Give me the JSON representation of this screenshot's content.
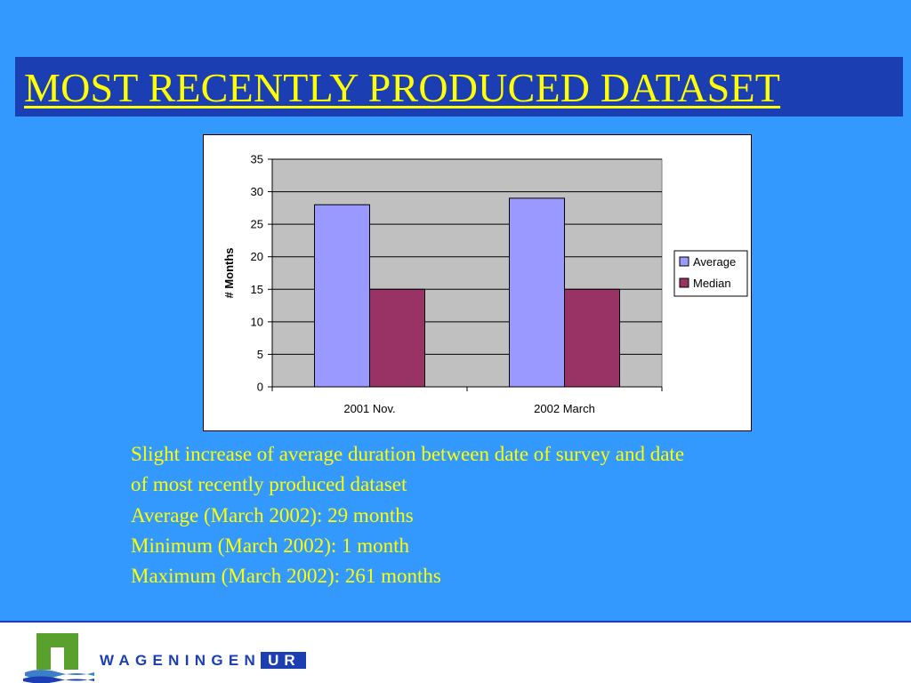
{
  "title": "MOST RECENTLY PRODUCED DATASET",
  "chart_data": {
    "type": "bar",
    "categories": [
      "2001 Nov.",
      "2002 March"
    ],
    "series": [
      {
        "name": "Average",
        "values": [
          28,
          29
        ],
        "color": "#9999ff"
      },
      {
        "name": "Median",
        "values": [
          15,
          15
        ],
        "color": "#993366"
      }
    ],
    "ylabel": "# Months",
    "xlabel": "",
    "ylim": [
      0,
      35
    ],
    "yticks": [
      0,
      5,
      10,
      15,
      20,
      25,
      30,
      35
    ],
    "grid": true,
    "plot_background": "#c0c0c0",
    "legend_position": "right"
  },
  "body_lines": [
    "Slight increase of average duration between date of survey and date",
    "of most recently produced dataset",
    "Average (March 2002): 29 months",
    "Minimum (March 2002): 1 month",
    "Maximum (March 2002): 261 months"
  ],
  "footer": {
    "logo_word": "WAGENINGEN",
    "logo_suffix": "UR",
    "logo_icon": "wageningen-logo-icon"
  },
  "colors": {
    "background": "#3399ff",
    "title_box": "#1b3fb3",
    "title_text": "#ffff00",
    "body_text": "#ffff00"
  }
}
